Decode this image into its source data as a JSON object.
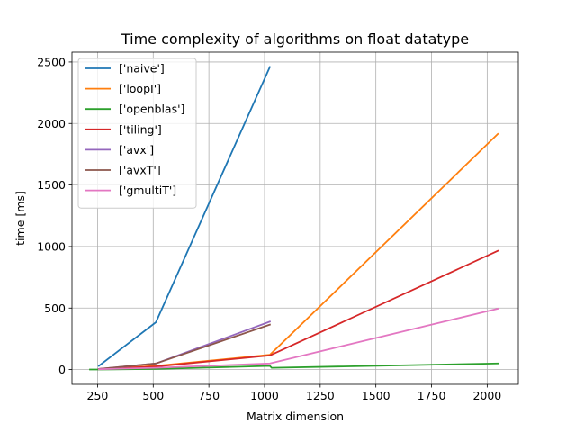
{
  "chart_data": {
    "type": "line",
    "title": "Time complexity of algorithms on float datatype",
    "xlabel": "Matrix dimension",
    "ylabel": "time [ms]",
    "xlim": [
      135,
      2140
    ],
    "ylim": [
      -120,
      2580
    ],
    "xticks": [
      250,
      500,
      750,
      1000,
      1250,
      1500,
      1750,
      2000
    ],
    "yticks": [
      0,
      500,
      1000,
      1500,
      2000,
      2500
    ],
    "grid": true,
    "legend_position": "top-left",
    "series": [
      {
        "name": "['naive']",
        "color": "#1f77b4",
        "x": [
          256,
          512,
          1024
        ],
        "y": [
          30,
          385,
          2460
        ]
      },
      {
        "name": "['loopI']",
        "color": "#ff7f0e",
        "x": [
          256,
          512,
          1024,
          2048
        ],
        "y": [
          5,
          30,
          120,
          1915
        ]
      },
      {
        "name": "['openblas']",
        "color": "#2ca02c",
        "x": [
          216,
          256,
          512,
          1024,
          1032,
          2048
        ],
        "y": [
          1,
          1,
          5,
          30,
          15,
          50
        ]
      },
      {
        "name": "['tiling']",
        "color": "#d62728",
        "x": [
          256,
          512,
          1024,
          2048
        ],
        "y": [
          5,
          25,
          115,
          965
        ]
      },
      {
        "name": "['avx']",
        "color": "#9467bd",
        "x": [
          256,
          512,
          1024
        ],
        "y": [
          5,
          50,
          390
        ]
      },
      {
        "name": "['avxT']",
        "color": "#8c564b",
        "x": [
          256,
          512,
          1024
        ],
        "y": [
          5,
          50,
          365
        ]
      },
      {
        "name": "['gmultiT']",
        "color": "#e377c2",
        "x": [
          256,
          512,
          1024,
          2048
        ],
        "y": [
          3,
          15,
          50,
          495
        ]
      }
    ]
  }
}
